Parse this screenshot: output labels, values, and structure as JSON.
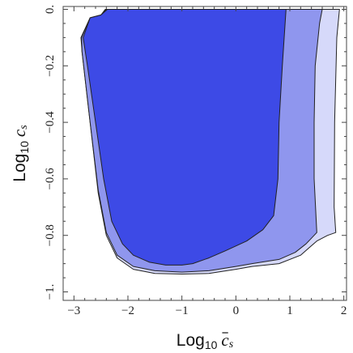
{
  "chart_data": {
    "type": "area",
    "title": "",
    "xlabel": {
      "base": "Log",
      "subscript": "10",
      "var": "c",
      "var_sub": "s",
      "bar": true
    },
    "ylabel": {
      "base": "Log",
      "subscript": "10",
      "var": "c",
      "var_sub": "s",
      "bar": false
    },
    "xlim": [
      -3.2,
      2.05
    ],
    "ylim": [
      -1.03,
      0.01
    ],
    "x_ticks": [
      {
        "v": -3,
        "label": "−3"
      },
      {
        "v": -2,
        "label": "−2"
      },
      {
        "v": -1,
        "label": "−1"
      },
      {
        "v": 0,
        "label": "0"
      },
      {
        "v": 1,
        "label": "1"
      },
      {
        "v": 2,
        "label": "2"
      }
    ],
    "y_ticks": [
      {
        "v": 0,
        "label": "0."
      },
      {
        "v": -0.2,
        "label": "−0.2"
      },
      {
        "v": -0.4,
        "label": "−0.4"
      },
      {
        "v": -0.6,
        "label": "−0.6"
      },
      {
        "v": -0.8,
        "label": "−0.8"
      },
      {
        "v": -1.0,
        "label": "−1."
      }
    ],
    "grid": false,
    "legend": "none",
    "series": [
      {
        "color": "#d6d9fa",
        "points": [
          [
            -2.42,
            0
          ],
          [
            1.92,
            0
          ],
          [
            1.87,
            -0.1
          ],
          [
            1.83,
            -0.4
          ],
          [
            1.82,
            -0.7
          ],
          [
            1.85,
            -0.79
          ],
          [
            1.7,
            -0.8
          ],
          [
            1.5,
            -0.82
          ],
          [
            1.2,
            -0.87
          ],
          [
            0.8,
            -0.9
          ],
          [
            0.3,
            -0.91
          ],
          [
            0,
            -0.92
          ],
          [
            -0.5,
            -0.935
          ],
          [
            -1,
            -0.937
          ],
          [
            -1.5,
            -0.935
          ],
          [
            -1.9,
            -0.92
          ],
          [
            -2.2,
            -0.88
          ],
          [
            -2.4,
            -0.8
          ],
          [
            -2.55,
            -0.65
          ],
          [
            -2.7,
            -0.4
          ],
          [
            -2.85,
            -0.15
          ],
          [
            -2.87,
            -0.1
          ],
          [
            -2.7,
            -0.03
          ],
          [
            -2.5,
            -0.02
          ]
        ]
      },
      {
        "color": "#8f96ee",
        "points": [
          [
            -2.4,
            0
          ],
          [
            1.6,
            0
          ],
          [
            1.55,
            -0.05
          ],
          [
            1.47,
            -0.2
          ],
          [
            1.45,
            -0.4
          ],
          [
            1.45,
            -0.6
          ],
          [
            1.5,
            -0.79
          ],
          [
            1.3,
            -0.83
          ],
          [
            1.1,
            -0.86
          ],
          [
            0.8,
            -0.885
          ],
          [
            0.3,
            -0.9
          ],
          [
            0,
            -0.91
          ],
          [
            -0.5,
            -0.925
          ],
          [
            -1,
            -0.93
          ],
          [
            -1.5,
            -0.925
          ],
          [
            -1.9,
            -0.91
          ],
          [
            -2.2,
            -0.87
          ],
          [
            -2.4,
            -0.79
          ],
          [
            -2.55,
            -0.64
          ],
          [
            -2.7,
            -0.4
          ],
          [
            -2.85,
            -0.15
          ],
          [
            -2.86,
            -0.1
          ],
          [
            -2.7,
            -0.03
          ],
          [
            -2.5,
            -0.02
          ]
        ]
      },
      {
        "color": "#3d4ae6",
        "points": [
          [
            -2.38,
            0
          ],
          [
            0.93,
            0
          ],
          [
            0.86,
            -0.2
          ],
          [
            0.8,
            -0.4
          ],
          [
            0.78,
            -0.6
          ],
          [
            0.7,
            -0.73
          ],
          [
            0.5,
            -0.78
          ],
          [
            0.2,
            -0.82
          ],
          [
            -0.2,
            -0.855
          ],
          [
            -0.5,
            -0.88
          ],
          [
            -0.8,
            -0.9
          ],
          [
            -1,
            -0.905
          ],
          [
            -1.3,
            -0.905
          ],
          [
            -1.6,
            -0.895
          ],
          [
            -1.9,
            -0.87
          ],
          [
            -2.1,
            -0.83
          ],
          [
            -2.3,
            -0.75
          ],
          [
            -2.45,
            -0.6
          ],
          [
            -2.6,
            -0.4
          ],
          [
            -2.75,
            -0.2
          ],
          [
            -2.83,
            -0.1
          ],
          [
            -2.7,
            -0.03
          ],
          [
            -2.5,
            -0.02
          ]
        ]
      }
    ]
  }
}
